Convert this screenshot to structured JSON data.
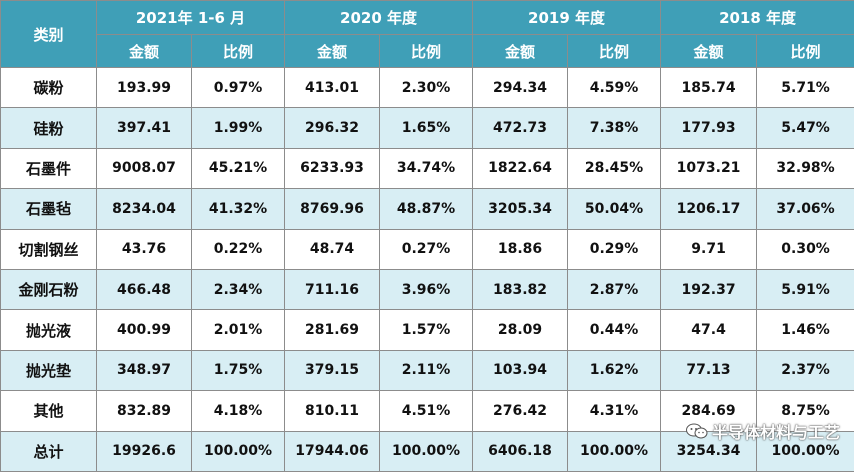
{
  "header": {
    "category": "类别",
    "periods": [
      "2021年 1-6 月",
      "2020 年度",
      "2019 年度",
      "2018 年度"
    ],
    "amount": "金额",
    "ratio": "比例"
  },
  "rows": [
    {
      "name": "碳粉",
      "cells": [
        "193.99",
        "0.97%",
        "413.01",
        "2.30%",
        "294.34",
        "4.59%",
        "185.74",
        "5.71%"
      ]
    },
    {
      "name": "硅粉",
      "cells": [
        "397.41",
        "1.99%",
        "296.32",
        "1.65%",
        "472.73",
        "7.38%",
        "177.93",
        "5.47%"
      ]
    },
    {
      "name": "石墨件",
      "cells": [
        "9008.07",
        "45.21%",
        "6233.93",
        "34.74%",
        "1822.64",
        "28.45%",
        "1073.21",
        "32.98%"
      ]
    },
    {
      "name": "石墨毡",
      "cells": [
        "8234.04",
        "41.32%",
        "8769.96",
        "48.87%",
        "3205.34",
        "50.04%",
        "1206.17",
        "37.06%"
      ]
    },
    {
      "name": "切割钢丝",
      "cells": [
        "43.76",
        "0.22%",
        "48.74",
        "0.27%",
        "18.86",
        "0.29%",
        "9.71",
        "0.30%"
      ]
    },
    {
      "name": "金刚石粉",
      "cells": [
        "466.48",
        "2.34%",
        "711.16",
        "3.96%",
        "183.82",
        "2.87%",
        "192.37",
        "5.91%"
      ]
    },
    {
      "name": "抛光液",
      "cells": [
        "400.99",
        "2.01%",
        "281.69",
        "1.57%",
        "28.09",
        "0.44%",
        "47.4",
        "1.46%"
      ]
    },
    {
      "name": "抛光垫",
      "cells": [
        "348.97",
        "1.75%",
        "379.15",
        "2.11%",
        "103.94",
        "1.62%",
        "77.13",
        "2.37%"
      ]
    },
    {
      "name": "其他",
      "cells": [
        "832.89",
        "4.18%",
        "810.11",
        "4.51%",
        "276.42",
        "4.31%",
        "284.69",
        "8.75%"
      ]
    },
    {
      "name": "总计",
      "cells": [
        "19926.6",
        "100.00%",
        "17944.06",
        "100.00%",
        "6406.18",
        "100.00%",
        "3254.34",
        "100.00%"
      ]
    }
  ],
  "watermark": {
    "text": "半导体材料与工艺",
    "icon": "wechat-icon"
  },
  "colors": {
    "header_bg": "#3f9fb7",
    "band_bg": "#d8eef4",
    "border": "#8c8c8c"
  }
}
